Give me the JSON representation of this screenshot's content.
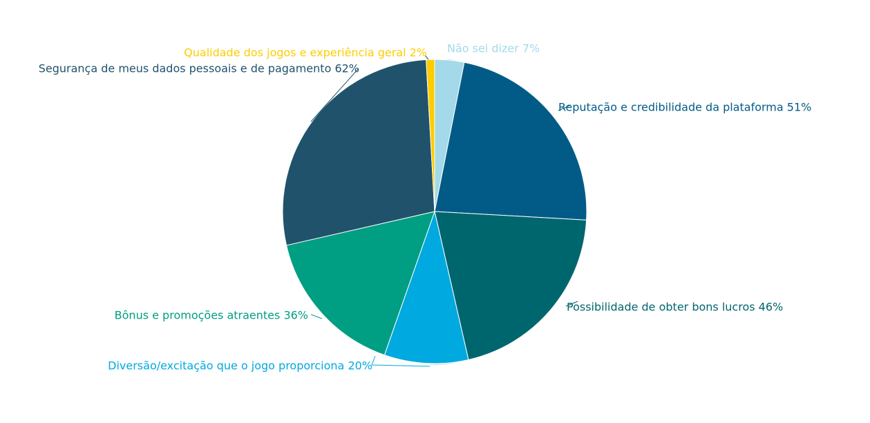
{
  "chart_data": {
    "type": "pie",
    "title": "",
    "categories": [
      "Não sei dizer",
      "Reputação e credibilidade da plataforma",
      "Possibilidade de obter bons lucros",
      "Diversão/excitação que o jogo proporciona",
      "Bônus e promoções atraentes",
      "Segurança de meus dados pessoais e de pagamento",
      "Qualidade dos jogos e experiência geral"
    ],
    "values": [
      7,
      51,
      46,
      20,
      36,
      62,
      2
    ],
    "value_labels": [
      "7%",
      "51%",
      "46%",
      "20%",
      "36%",
      "62%",
      "2%"
    ],
    "colors": [
      "#a3d9e8",
      "#025b87",
      "#00666e",
      "#00a9e0",
      "#009e82",
      "#20536b",
      "#ffcc00"
    ],
    "start": "top",
    "direction": "clockwise",
    "legend": "none"
  }
}
